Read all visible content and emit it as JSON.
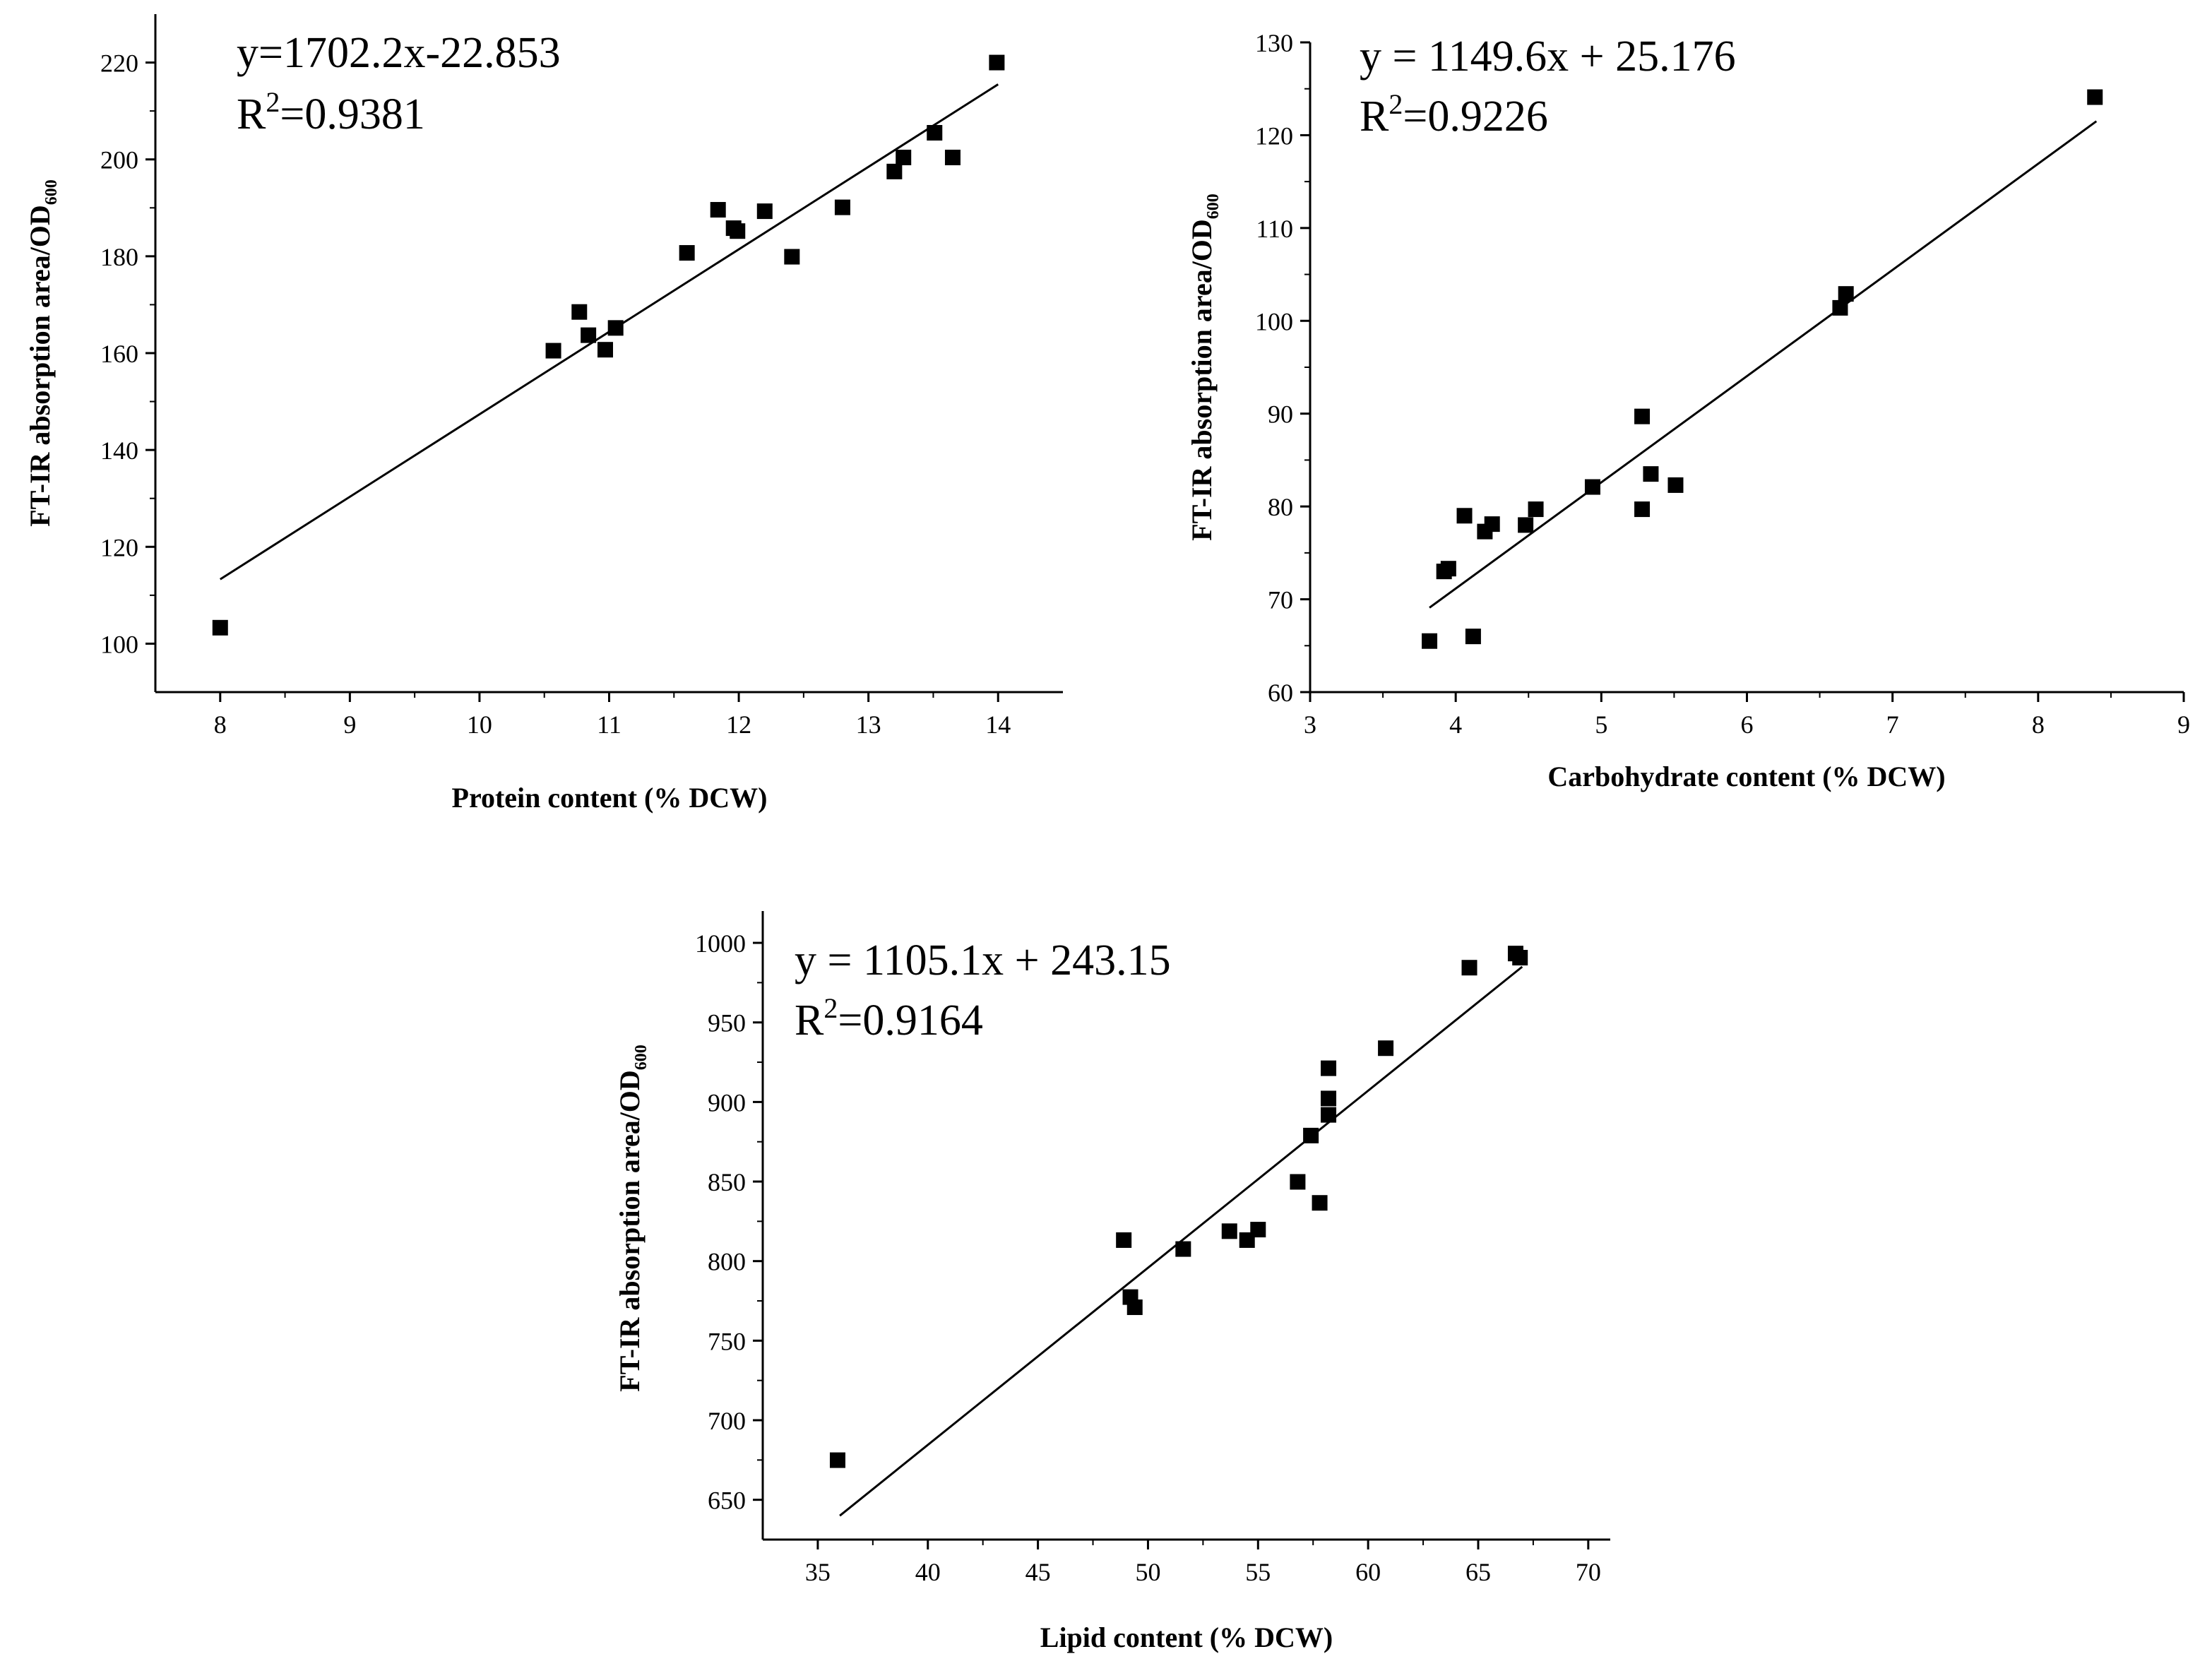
{
  "chart_data": [
    {
      "id": "protein",
      "type": "scatter",
      "xlabel": "Protein content (% DCW)",
      "ylabel_main": "FT-IR absorption area/OD",
      "ylabel_sub": "600",
      "equation": "y=1702.2x-22.853",
      "r2_prefix": "R",
      "r2_sup": "2",
      "r2_value": "=0.9381",
      "xlim": [
        7.5,
        14.5
      ],
      "ylim": [
        90,
        230
      ],
      "xticks": [
        8,
        9,
        10,
        11,
        12,
        13,
        14
      ],
      "yticks": [
        100,
        120,
        140,
        160,
        180,
        200,
        220
      ],
      "fit_line": {
        "x": [
          8.0,
          14.0
        ],
        "y": [
          113.3,
          215.5
        ]
      },
      "points": [
        {
          "x": 8.0,
          "y": 103.3
        },
        {
          "x": 10.57,
          "y": 160.5
        },
        {
          "x": 10.77,
          "y": 168.5
        },
        {
          "x": 10.84,
          "y": 163.7
        },
        {
          "x": 10.97,
          "y": 160.7
        },
        {
          "x": 11.05,
          "y": 165.2
        },
        {
          "x": 11.6,
          "y": 180.7
        },
        {
          "x": 11.84,
          "y": 189.6
        },
        {
          "x": 11.96,
          "y": 185.8
        },
        {
          "x": 11.99,
          "y": 185.2
        },
        {
          "x": 12.2,
          "y": 189.3
        },
        {
          "x": 12.41,
          "y": 179.9
        },
        {
          "x": 12.8,
          "y": 190.1
        },
        {
          "x": 13.2,
          "y": 197.5
        },
        {
          "x": 13.27,
          "y": 200.4
        },
        {
          "x": 13.51,
          "y": 205.5
        },
        {
          "x": 13.65,
          "y": 200.4
        },
        {
          "x": 13.99,
          "y": 220.0
        }
      ]
    },
    {
      "id": "carbohydrate",
      "type": "scatter",
      "xlabel": "Carbohydrate content (% DCW)",
      "ylabel_main": "FT-IR absorption area/OD",
      "ylabel_sub": "600",
      "equation": "y = 1149.6x + 25.176",
      "r2_prefix": "R",
      "r2_sup": "2",
      "r2_value": "=0.9226",
      "xlim": [
        3,
        9
      ],
      "ylim": [
        60,
        130
      ],
      "xticks": [
        3,
        4,
        5,
        6,
        7,
        8,
        9
      ],
      "yticks": [
        60,
        70,
        80,
        90,
        100,
        110,
        120,
        130
      ],
      "fit_line": {
        "x": [
          3.82,
          8.4
        ],
        "y": [
          69.1,
          121.5
        ]
      },
      "points": [
        {
          "x": 3.82,
          "y": 65.5
        },
        {
          "x": 3.92,
          "y": 73.0
        },
        {
          "x": 3.95,
          "y": 73.3
        },
        {
          "x": 4.06,
          "y": 79.0
        },
        {
          "x": 4.12,
          "y": 66.0
        },
        {
          "x": 4.2,
          "y": 77.3
        },
        {
          "x": 4.25,
          "y": 78.1
        },
        {
          "x": 4.48,
          "y": 78.0
        },
        {
          "x": 4.55,
          "y": 79.7
        },
        {
          "x": 4.94,
          "y": 82.1
        },
        {
          "x": 5.28,
          "y": 89.7
        },
        {
          "x": 5.28,
          "y": 79.7
        },
        {
          "x": 5.34,
          "y": 83.5
        },
        {
          "x": 5.51,
          "y": 82.3
        },
        {
          "x": 6.64,
          "y": 101.4
        },
        {
          "x": 6.68,
          "y": 102.9
        },
        {
          "x": 8.39,
          "y": 124.1
        }
      ]
    },
    {
      "id": "lipid",
      "type": "scatter",
      "xlabel": "Lipid content (% DCW)",
      "ylabel_main": "FT-IR absorption area/OD",
      "ylabel_sub": "600",
      "equation": "y = 1105.1x + 243.15",
      "r2_prefix": "R",
      "r2_sup": "2",
      "r2_value": "=0.9164",
      "xlim": [
        32.5,
        71
      ],
      "ylim": [
        625,
        1020
      ],
      "xticks": [
        35,
        40,
        45,
        50,
        55,
        60,
        65,
        70
      ],
      "yticks": [
        650,
        700,
        750,
        800,
        850,
        900,
        950,
        1000
      ],
      "fit_line": {
        "x": [
          36.0,
          67.0
        ],
        "y": [
          640,
          985
        ]
      },
      "points": [
        {
          "x": 35.9,
          "y": 674.9
        },
        {
          "x": 48.9,
          "y": 813.2
        },
        {
          "x": 49.2,
          "y": 777.4
        },
        {
          "x": 49.4,
          "y": 771.0
        },
        {
          "x": 51.6,
          "y": 807.6
        },
        {
          "x": 53.7,
          "y": 818.8
        },
        {
          "x": 54.5,
          "y": 813.2
        },
        {
          "x": 55.0,
          "y": 819.8
        },
        {
          "x": 56.8,
          "y": 849.8
        },
        {
          "x": 57.4,
          "y": 878.9
        },
        {
          "x": 57.8,
          "y": 836.6
        },
        {
          "x": 58.2,
          "y": 921.2
        },
        {
          "x": 58.2,
          "y": 902.2
        },
        {
          "x": 58.2,
          "y": 891.9
        },
        {
          "x": 60.8,
          "y": 933.8
        },
        {
          "x": 64.6,
          "y": 984.4
        },
        {
          "x": 66.7,
          "y": 993.3
        },
        {
          "x": 66.9,
          "y": 990.7
        }
      ]
    }
  ]
}
